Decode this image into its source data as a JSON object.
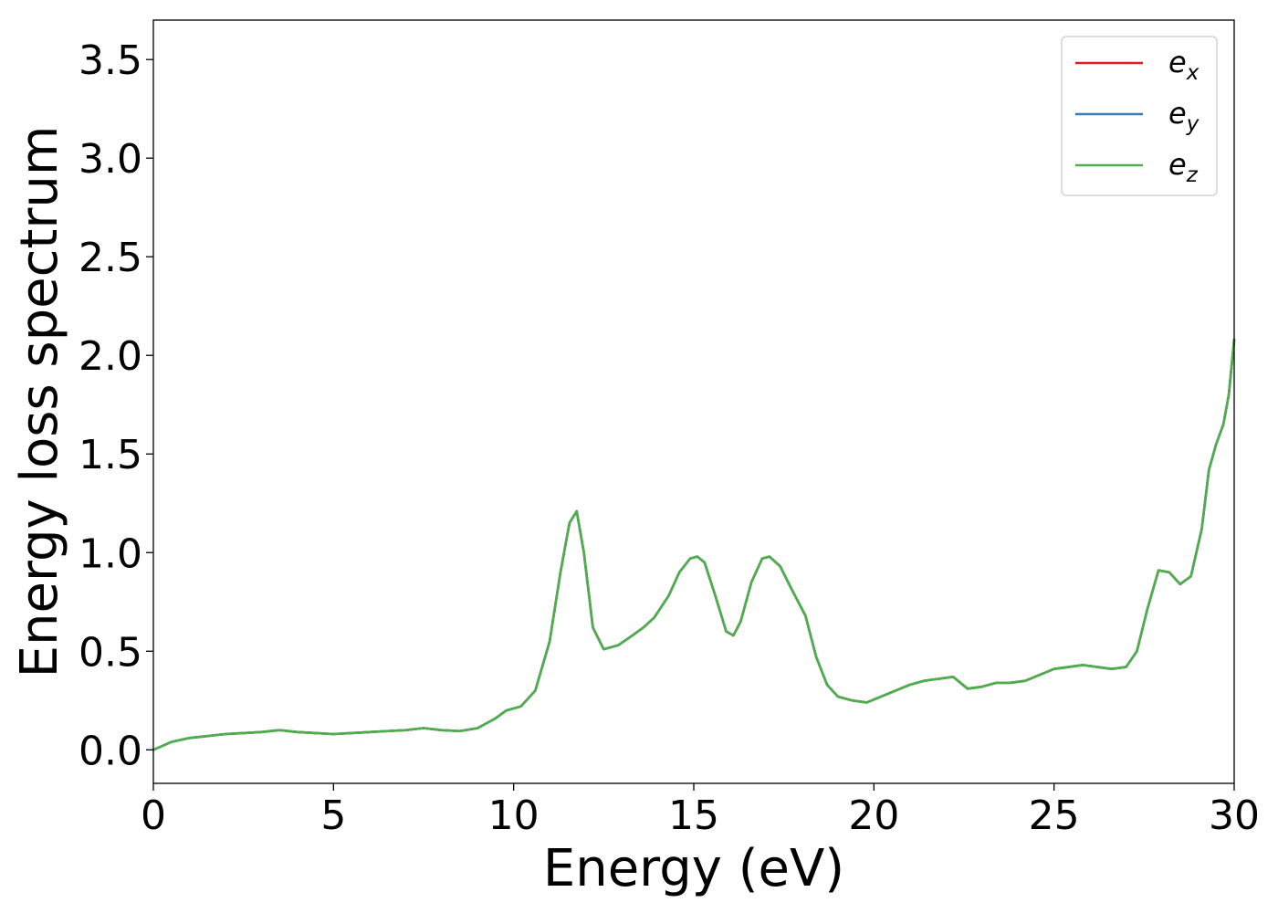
{
  "chart_data": {
    "type": "line",
    "xlabel": "Energy (eV)",
    "ylabel": "Energy loss spectrum",
    "xlim": [
      0,
      30
    ],
    "ylim": [
      -0.17,
      3.7
    ],
    "xticks": [
      0,
      5,
      10,
      15,
      20,
      25,
      30
    ],
    "yticks": [
      0.0,
      0.5,
      1.0,
      1.5,
      2.0,
      2.5,
      3.0,
      3.5
    ],
    "xtick_labels": [
      "0",
      "5",
      "10",
      "15",
      "20",
      "25",
      "30"
    ],
    "ytick_labels": [
      "0.0",
      "0.5",
      "1.0",
      "1.5",
      "2.0",
      "2.5",
      "3.0",
      "3.5"
    ],
    "grid": false,
    "legend_position": "top-right",
    "series": [
      {
        "name": "e",
        "subscript": "x",
        "color": "#e41a1c"
      },
      {
        "name": "e",
        "subscript": "y",
        "color": "#377eb8"
      },
      {
        "name": "e",
        "subscript": "z",
        "color": "#4daf4a"
      }
    ],
    "x": [
      0,
      0.5,
      1,
      1.5,
      2,
      2.5,
      3,
      3.5,
      4,
      4.5,
      5,
      5.5,
      6,
      6.5,
      7,
      7.5,
      8,
      8.5,
      9,
      9.5,
      9.8,
      10.2,
      10.6,
      11.0,
      11.3,
      11.55,
      11.75,
      11.95,
      12.2,
      12.5,
      12.9,
      13.3,
      13.6,
      13.9,
      14.3,
      14.6,
      14.9,
      15.1,
      15.3,
      15.6,
      15.9,
      16.1,
      16.3,
      16.6,
      16.9,
      17.1,
      17.4,
      17.7,
      18.1,
      18.4,
      18.7,
      19.0,
      19.4,
      19.8,
      20.2,
      20.6,
      21.0,
      21.4,
      21.8,
      22.2,
      22.6,
      23.0,
      23.4,
      23.8,
      24.2,
      24.6,
      25.0,
      25.4,
      25.8,
      26.2,
      26.6,
      27.0,
      27.3,
      27.6,
      27.9,
      28.2,
      28.5,
      28.8,
      29.1,
      29.3,
      29.5,
      29.7,
      29.85,
      30.0
    ],
    "values": [
      0.0,
      0.04,
      0.06,
      0.07,
      0.08,
      0.085,
      0.09,
      0.1,
      0.09,
      0.085,
      0.08,
      0.085,
      0.09,
      0.095,
      0.1,
      0.11,
      0.1,
      0.095,
      0.11,
      0.16,
      0.2,
      0.22,
      0.3,
      0.55,
      0.9,
      1.15,
      1.21,
      1.0,
      0.62,
      0.51,
      0.53,
      0.58,
      0.62,
      0.67,
      0.78,
      0.9,
      0.97,
      0.98,
      0.95,
      0.78,
      0.6,
      0.58,
      0.65,
      0.85,
      0.97,
      0.98,
      0.93,
      0.82,
      0.68,
      0.47,
      0.33,
      0.27,
      0.25,
      0.24,
      0.27,
      0.3,
      0.33,
      0.35,
      0.36,
      0.37,
      0.31,
      0.32,
      0.34,
      0.34,
      0.35,
      0.38,
      0.41,
      0.42,
      0.43,
      0.42,
      0.41,
      0.42,
      0.5,
      0.72,
      0.91,
      0.9,
      0.84,
      0.88,
      1.12,
      1.42,
      1.55,
      1.65,
      1.8,
      2.08
    ]
  }
}
